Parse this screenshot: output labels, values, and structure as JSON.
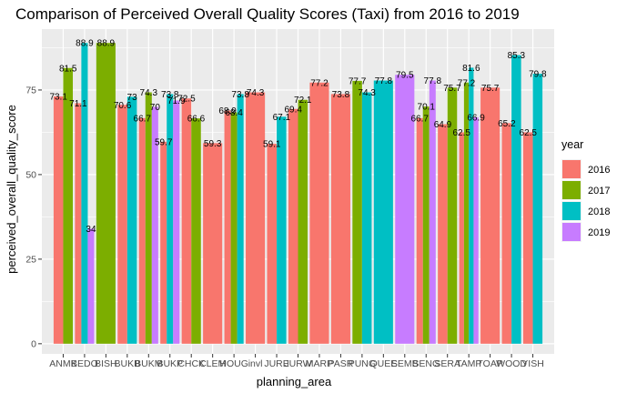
{
  "chart_data": {
    "type": "bar",
    "title": "Comparison of Perceived Overall Quality Scores (Taxi) from 2016 to 2019",
    "xlabel": "planning_area",
    "ylabel": "perceived_overall_quality_score",
    "ylim": [
      -3,
      93
    ],
    "yticks": [
      0,
      25,
      50,
      75
    ],
    "grid": true,
    "legend_position": "right",
    "legend_title": "year",
    "categories": [
      "ANMK",
      "BEDO",
      "BISH",
      "BUKB",
      "BUKM",
      "BUKP",
      "CHCK",
      "CLEM",
      "HOUG",
      "invl",
      "JURE",
      "JURW",
      "MARP",
      "PASR",
      "PUNG",
      "QUEE",
      "SEMB",
      "SENG",
      "SERA",
      "TAMP",
      "TOAP",
      "WOOD",
      "YISH"
    ],
    "series": [
      {
        "name": "2016",
        "color": "#F8766D",
        "values": [
          73.1,
          71.1,
          null,
          70.6,
          66.7,
          59.7,
          72.5,
          59.3,
          68.9,
          74.3,
          59.1,
          69.4,
          77.2,
          73.8,
          null,
          null,
          null,
          66.7,
          64.9,
          62.5,
          75.7,
          65.2,
          62.5
        ]
      },
      {
        "name": "2017",
        "color": "#7CAE00",
        "values": [
          81.5,
          null,
          88.9,
          null,
          74.3,
          null,
          66.6,
          null,
          68.4,
          null,
          null,
          72.1,
          null,
          null,
          77.7,
          null,
          null,
          70.1,
          75.7,
          77.2,
          null,
          null,
          null
        ]
      },
      {
        "name": "2018",
        "color": "#00BFC4",
        "values": [
          null,
          88.9,
          null,
          73.0,
          null,
          73.8,
          null,
          null,
          73.8,
          null,
          67.1,
          null,
          null,
          null,
          74.3,
          77.8,
          null,
          null,
          null,
          81.6,
          null,
          85.3,
          79.8
        ]
      },
      {
        "name": "2019",
        "color": "#C77CFF",
        "values": [
          null,
          34.0,
          null,
          null,
          70.0,
          71.9,
          null,
          null,
          null,
          null,
          null,
          null,
          null,
          null,
          null,
          null,
          79.5,
          77.8,
          null,
          66.9,
          null,
          null,
          null
        ]
      }
    ]
  }
}
